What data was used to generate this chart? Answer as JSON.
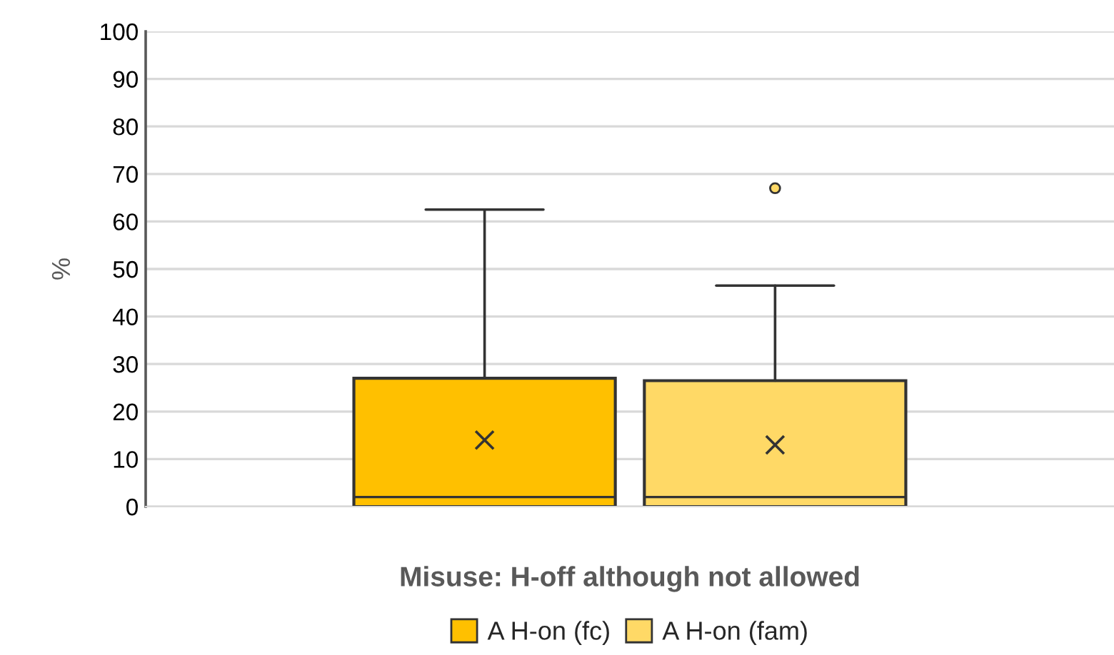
{
  "chart_data": {
    "type": "box",
    "ylabel": "%",
    "categories": [
      "Misuse: H-off although not allowed"
    ],
    "ylim": [
      0,
      100
    ],
    "yticks": [
      0,
      10,
      20,
      30,
      40,
      50,
      60,
      70,
      80,
      90,
      100
    ],
    "grid": "y",
    "legend": "bottom",
    "series": [
      {
        "name": "A H-on (fc)",
        "color": "#ffc000",
        "boxes": [
          {
            "low": 0,
            "q1": 0,
            "median": 2,
            "q3": 27,
            "high": 62.5,
            "mean": 14
          }
        ]
      },
      {
        "name": "A H-on (fam)",
        "color": "#ffd966",
        "boxes": [
          {
            "low": 0,
            "q1": 0,
            "median": 2,
            "q3": 26.5,
            "high": 46.5,
            "mean": 13,
            "outliers": [
              67
            ]
          }
        ]
      }
    ]
  }
}
